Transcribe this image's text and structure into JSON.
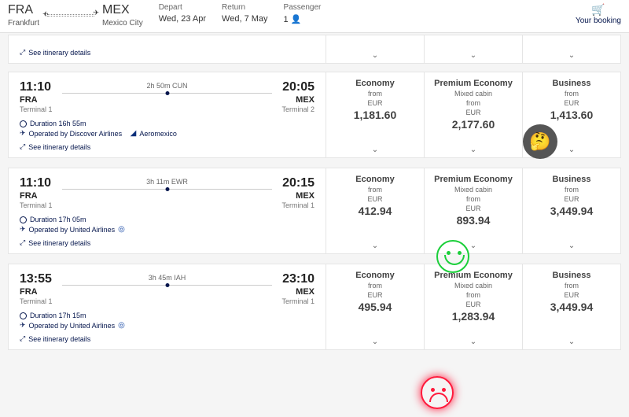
{
  "header": {
    "from_code": "FRA",
    "from_city": "Frankfurt",
    "to_code": "MEX",
    "to_city": "Mexico City",
    "depart_label": "Depart",
    "depart_val": "Wed, 23 Apr",
    "return_label": "Return",
    "return_val": "Wed, 7 May",
    "pax_label": "Passenger",
    "pax_count": "1",
    "booking_label": "Your booking"
  },
  "itin_label": "See itinerary details",
  "from_label": "from",
  "currency": "EUR",
  "flights": [
    {
      "dep_time": "11:10",
      "dep_apt": "FRA",
      "dep_term": "Terminal 1",
      "arr_time": "20:05",
      "arr_apt": "MEX",
      "arr_term": "Terminal 2",
      "stop": "2h 50m  CUN",
      "duration": "Duration 16h 55m",
      "operator": "Operated by Discover Airlines",
      "extra_carrier": "Aeromexico",
      "fares": [
        {
          "cls": "Economy",
          "sub": "",
          "price": "1,181.60"
        },
        {
          "cls": "Premium Economy",
          "sub": "Mixed cabin",
          "price": "2,177.60"
        },
        {
          "cls": "Business",
          "sub": "",
          "price": "1,413.60"
        }
      ]
    },
    {
      "dep_time": "11:10",
      "dep_apt": "FRA",
      "dep_term": "Terminal 1",
      "arr_time": "20:15",
      "arr_apt": "MEX",
      "arr_term": "Terminal 1",
      "stop": "3h 11m  EWR",
      "duration": "Duration 17h 05m",
      "operator": "Operated by United Airlines",
      "extra_carrier": "",
      "fares": [
        {
          "cls": "Economy",
          "sub": "",
          "price": "412.94"
        },
        {
          "cls": "Premium Economy",
          "sub": "Mixed cabin",
          "price": "893.94"
        },
        {
          "cls": "Business",
          "sub": "",
          "price": "3,449.94"
        }
      ]
    },
    {
      "dep_time": "13:55",
      "dep_apt": "FRA",
      "dep_term": "Terminal 1",
      "arr_time": "23:10",
      "arr_apt": "MEX",
      "arr_term": "Terminal 1",
      "stop": "3h 45m  IAH",
      "duration": "Duration 17h 15m",
      "operator": "Operated by United Airlines",
      "extra_carrier": "",
      "fares": [
        {
          "cls": "Economy",
          "sub": "",
          "price": "495.94"
        },
        {
          "cls": "Premium Economy",
          "sub": "Mixed cabin",
          "price": "1,283.94"
        },
        {
          "cls": "Business",
          "sub": "",
          "price": "3,449.94"
        }
      ]
    }
  ]
}
